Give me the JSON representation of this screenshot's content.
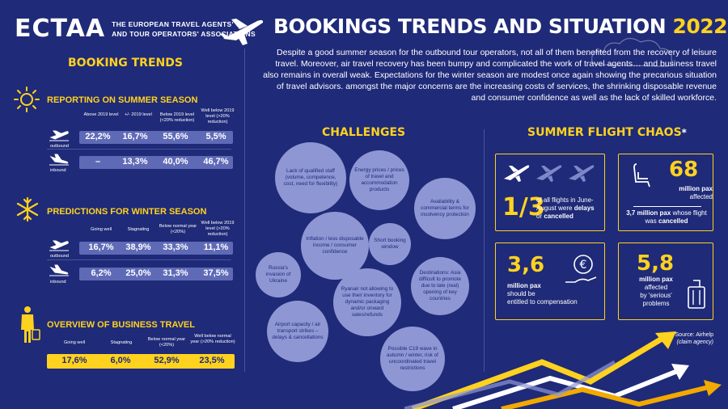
{
  "header": {
    "logo": "ECTAA",
    "tagline_1": "THE EUROPEAN TRAVEL AGENTS'",
    "tagline_2": "AND TOUR OPERATORS' ASSOCIATIONS",
    "title_main": "BOOKINGS TRENDS AND SITUATION",
    "title_year": "2022",
    "intro": "Despite a good summer season for the outbound tour operators, not all of them benefited from the recovery of leisure travel. Moreover, air travel recovery has been bumpy and complicated the work of travel agents… and business travel also remains in overall weak. Expectations for the winter season are modest once again showing the precarious situation of travel advisors. amongst the major concerns are the increasing costs of services, the shrinking disposable revenue and consumer confidence as well as the lack of skilled workforce."
  },
  "booking_trends": {
    "title": "BOOKING TRENDS",
    "summer": {
      "label_1": "REPORTING ON",
      "label_2": "SUMMER SEASON",
      "columns": [
        "Above 2019 level",
        "+/- 2019 level",
        "Below 2019 level (<20% reduction)",
        "Well below 2019 level (>20% reduction)"
      ],
      "outbound_label": "outbound",
      "inbound_label": "inbound",
      "outbound": [
        "22,2%",
        "16,7%",
        "55,6%",
        "5,5%"
      ],
      "inbound": [
        "–",
        "13,3%",
        "40,0%",
        "46,7%"
      ]
    },
    "winter": {
      "label_1": "PREDICTIONS FOR",
      "label_2": "WINTER SEASON",
      "columns": [
        "Going well",
        "Stagnating",
        "Below normal year (<20%)",
        "Well below 2019 level (>20% reduction)"
      ],
      "outbound_label": "outbound",
      "inbound_label": "inbound",
      "outbound": [
        "16,7%",
        "38,9%",
        "33,3%",
        "11,1%"
      ],
      "inbound": [
        "6,2%",
        "25,0%",
        "31,3%",
        "37,5%"
      ]
    },
    "business": {
      "label_1": "OVERVIEW OF",
      "label_2": "BUSINESS TRAVEL",
      "columns": [
        "Going well",
        "Stagnating",
        "Below normal year (<20%)",
        "Well below normal year (>20% reduction)"
      ],
      "values": [
        "17,6%",
        "6,0%",
        "52,9%",
        "23,5%"
      ]
    }
  },
  "challenges": {
    "title": "CHALLENGES",
    "items": [
      "Lack of qualified staff (volume, competence, cost, need for flexibility)",
      "Energy prices / prices of travel and accommodation products",
      "Availability & commercial terms for insolvency protection",
      "Inflation / less disposable income / consumer confidence",
      "Short booking window",
      "Russia's invasion of Ukraine",
      "Destinations: Asia difficult to promote due to late (real) opening of key countries",
      "Ryanair not allowing to use their inventory for dynamic packaging and/or onward sales/refunds",
      "Airport capacity / air transport strikes – delays & cancellations",
      "Possible C19 wave in autumn / winter, risk of uncoordinated travel restrictions"
    ]
  },
  "flight_chaos": {
    "title": "SUMMER FLIGHT CHAOS",
    "title_mark": "*",
    "card1": {
      "big": "1/3",
      "text_1": "of all flights in June-August were",
      "text_2": "delays",
      "text_3": "or",
      "text_4": "cancelled"
    },
    "card2": {
      "big": "68",
      "unit": "million pax",
      "unit2": "affected",
      "text_1": "3,7 million pax",
      "text_2": "whose flight was",
      "text_3": "cancelled"
    },
    "card3": {
      "big": "3,6",
      "unit": "million pax",
      "text_1": "should be",
      "text_2": "entitled to compensation"
    },
    "card4": {
      "big": "5,8",
      "unit": "million pax",
      "text_1": "affected",
      "text_2": "by 'serious'",
      "text_3": "problems"
    },
    "source": "* Source: Airhelp",
    "source_sub": "(claim agency)"
  },
  "colors": {
    "background": "#1f2a78",
    "accent": "#ffd21f",
    "bubble": "#8e97d4",
    "bar": "#5f6ab7"
  }
}
